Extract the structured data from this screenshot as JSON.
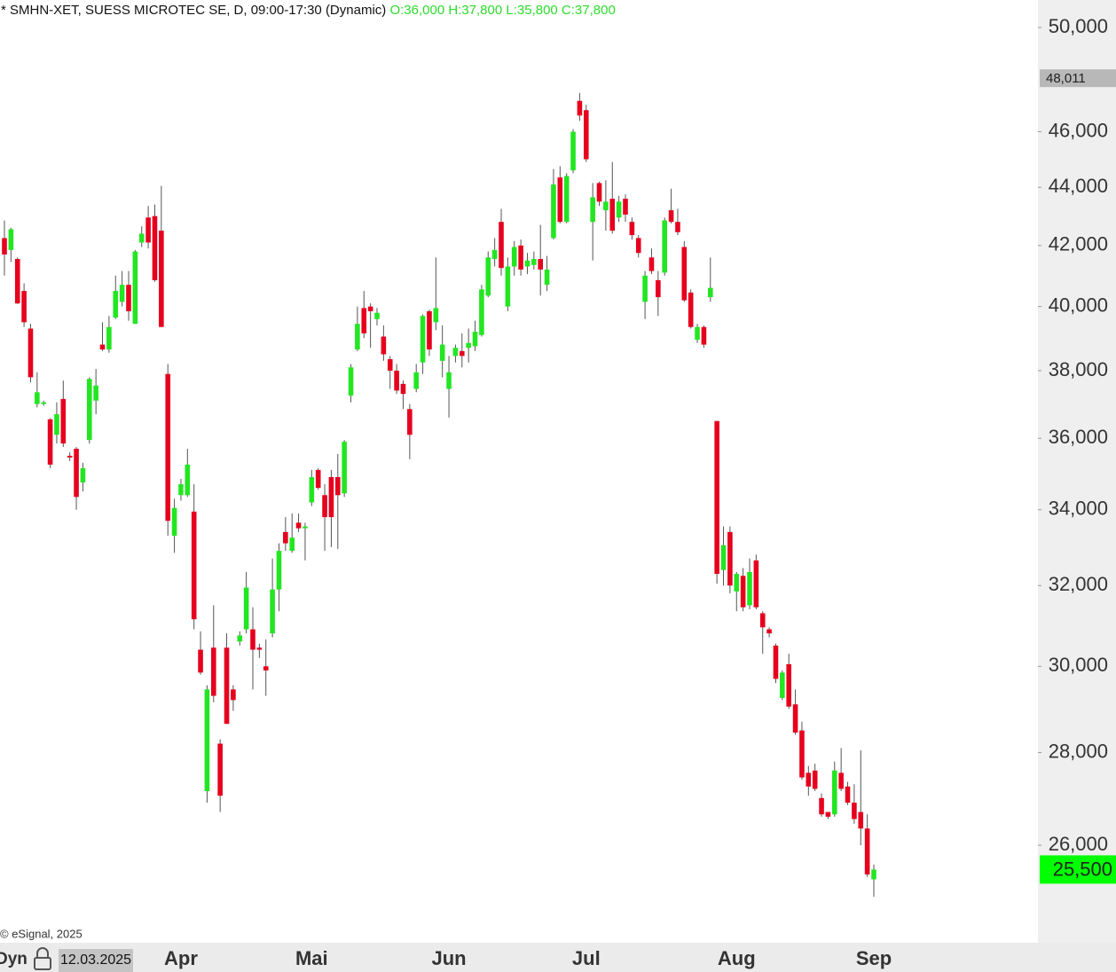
{
  "chart_data": {
    "type": "candlestick",
    "title": "* SMHN-XET, SUESS MICROTEC SE, D, 09:00-17:30 (Dynamic)",
    "ohlc_readout": "O:36,000 H:37,800 L:35,800 C:37,800",
    "copyright": "© eSignal, 2025",
    "mode_label": "Dyn",
    "cursor_date": "12.03.2025",
    "log_scale": true,
    "grid": false,
    "up_color": "#22e622",
    "down_color": "#e6001e",
    "wick_color": "#555555",
    "ylim": [
      24050,
      51110
    ],
    "yticks": [
      {
        "value": 26000,
        "label": "26,000"
      },
      {
        "value": 28000,
        "label": "28,000"
      },
      {
        "value": 30000,
        "label": "30,000"
      },
      {
        "value": 32000,
        "label": "32,000"
      },
      {
        "value": 34000,
        "label": "34,000"
      },
      {
        "value": 36000,
        "label": "36,000"
      },
      {
        "value": 38000,
        "label": "38,000"
      },
      {
        "value": 40000,
        "label": "40,000"
      },
      {
        "value": 42000,
        "label": "42,000"
      },
      {
        "value": 44000,
        "label": "44,000"
      },
      {
        "value": 46000,
        "label": "46,000"
      },
      {
        "value": 50000,
        "label": "50,000"
      }
    ],
    "price_markers": [
      {
        "value": 48011,
        "label": "48,011",
        "color": "#b8b8b8"
      },
      {
        "value": 25500,
        "label": "25,500",
        "color": "#00ff00"
      }
    ],
    "categories": [
      null,
      null,
      null,
      null,
      null,
      null,
      null,
      null,
      null,
      null,
      null,
      null,
      null,
      null,
      null,
      null,
      null,
      null,
      null,
      null,
      null,
      null,
      null,
      null,
      null,
      null,
      null,
      "Apr",
      null,
      null,
      null,
      null,
      null,
      null,
      null,
      null,
      null,
      null,
      null,
      null,
      null,
      null,
      null,
      null,
      null,
      null,
      null,
      "Mai",
      null,
      null,
      null,
      null,
      null,
      null,
      null,
      null,
      null,
      null,
      null,
      null,
      null,
      null,
      null,
      null,
      null,
      null,
      null,
      null,
      "Jun",
      null,
      null,
      null,
      null,
      null,
      null,
      null,
      null,
      null,
      null,
      null,
      null,
      null,
      null,
      null,
      null,
      null,
      null,
      null,
      null,
      "Jul",
      null,
      null,
      null,
      null,
      null,
      null,
      null,
      null,
      null,
      null,
      null,
      null,
      null,
      null,
      null,
      null,
      null,
      null,
      null,
      null,
      null,
      null,
      "Aug",
      null,
      null,
      null,
      null,
      null,
      null,
      null,
      null,
      null,
      null,
      null,
      null,
      null,
      null,
      null,
      null,
      null,
      null,
      null,
      null,
      "Sep"
    ],
    "open": [
      42250,
      41850,
      41550,
      40500,
      39300,
      37000,
      37000,
      36550,
      36100,
      37150,
      35500,
      35700,
      34750,
      35950,
      37100,
      38800,
      38650,
      39650,
      40150,
      40700,
      39450,
      42100,
      42950,
      43000,
      42500,
      37900,
      33300,
      34400,
      34400,
      33950,
      30400,
      27150,
      30450,
      28200,
      30450,
      29450,
      30600,
      30900,
      30900,
      30450,
      30000,
      30800,
      31900,
      33400,
      32900,
      33650,
      33500,
      34200,
      35100,
      34400,
      34900,
      34900,
      34450,
      37250,
      38650,
      39950,
      40000,
      39600,
      39050,
      38350,
      38000,
      37600,
      36850,
      37450,
      38250,
      39850,
      39500,
      38300,
      37450,
      38450,
      38600,
      38700,
      38750,
      39100,
      40350,
      41550,
      42800,
      40000,
      41300,
      42000,
      41300,
      41350,
      41550,
      40700,
      42250,
      44350,
      42800,
      44600,
      47150,
      46800,
      42800,
      44150,
      43200,
      43600,
      42950,
      43600,
      42800,
      42250,
      40150,
      41600,
      40850,
      41100,
      43200,
      42800,
      41950,
      40450,
      38950,
      39350,
      40300,
      36500,
      32400,
      33400,
      31850,
      32250,
      31500,
      32650,
      31300,
      30900,
      30500,
      29250,
      30050,
      29100,
      28500,
      27550,
      27600,
      27000,
      26700,
      26650,
      27550,
      27250,
      26900,
      26700,
      26350,
      25300
    ],
    "high": [
      42850,
      42600,
      41600,
      40750,
      39450,
      37950,
      37100,
      36580,
      37050,
      37700,
      35600,
      35750,
      35300,
      37800,
      38050,
      39500,
      39700,
      41000,
      41150,
      41150,
      41850,
      42650,
      43350,
      43400,
      44050,
      38200,
      34300,
      34850,
      35700,
      34700,
      30850,
      29550,
      31500,
      28300,
      30800,
      29550,
      30850,
      32350,
      31450,
      30550,
      30650,
      32700,
      33100,
      33800,
      33900,
      33900,
      33650,
      35100,
      35150,
      34700,
      35100,
      35550,
      35950,
      38200,
      40000,
      40500,
      40100,
      39950,
      39400,
      38450,
      38200,
      37700,
      37000,
      38200,
      39750,
      39900,
      41600,
      39400,
      38450,
      38800,
      39150,
      39300,
      39550,
      40700,
      41800,
      42250,
      43250,
      41600,
      42150,
      42200,
      41750,
      41800,
      42700,
      41650,
      44650,
      44750,
      44500,
      46100,
      47450,
      47000,
      44150,
      44200,
      44250,
      44900,
      43700,
      43750,
      42950,
      42350,
      41150,
      41900,
      41150,
      42950,
      43950,
      43250,
      42150,
      40550,
      39450,
      39400,
      41600,
      36500,
      33550,
      33550,
      32350,
      32450,
      32700,
      32800,
      31350,
      30950,
      30550,
      29900,
      30300,
      29450,
      28700,
      27700,
      27750,
      27100,
      26700,
      27800,
      28100,
      27350,
      27300,
      28050,
      26650,
      25600
    ],
    "low": [
      41000,
      41450,
      40080,
      39350,
      37650,
      36900,
      36950,
      35150,
      35850,
      35750,
      35350,
      34000,
      34500,
      35850,
      36700,
      38600,
      38550,
      39600,
      40000,
      39550,
      39450,
      41950,
      41900,
      40800,
      39350,
      33300,
      32850,
      34250,
      34350,
      30900,
      29800,
      26900,
      29150,
      26700,
      28650,
      28950,
      30500,
      30800,
      29450,
      30200,
      29300,
      30700,
      31350,
      32900,
      32850,
      33400,
      32650,
      34100,
      34550,
      32900,
      33000,
      32950,
      34350,
      37050,
      38600,
      39000,
      38700,
      39400,
      38300,
      37450,
      37300,
      36850,
      35400,
      37350,
      37900,
      38450,
      39250,
      37800,
      36600,
      38250,
      38100,
      38250,
      38600,
      39050,
      40300,
      41300,
      41000,
      39850,
      41000,
      41000,
      41050,
      41200,
      40350,
      40500,
      42200,
      42750,
      42750,
      44500,
      46400,
      44900,
      41500,
      43350,
      42500,
      42400,
      42800,
      42800,
      42200,
      41600,
      39600,
      41050,
      39700,
      41000,
      42750,
      42350,
      40150,
      39300,
      38850,
      38700,
      40150,
      32050,
      32000,
      31800,
      31350,
      31350,
      31400,
      31400,
      30300,
      30700,
      29600,
      29200,
      29000,
      28400,
      27400,
      27050,
      27150,
      26600,
      26550,
      26600,
      27150,
      26850,
      26450,
      26000,
      25350,
      24950
    ],
    "close": [
      41700,
      42550,
      40100,
      39500,
      37800,
      37350,
      37050,
      35250,
      36700,
      35850,
      35450,
      34350,
      35150,
      37750,
      37550,
      38650,
      39350,
      40500,
      40700,
      39850,
      41800,
      42400,
      42100,
      40850,
      39350,
      33700,
      34050,
      34700,
      35250,
      31150,
      29850,
      29450,
      29300,
      27050,
      28650,
      29200,
      30750,
      31950,
      30400,
      30400,
      29900,
      31900,
      32900,
      33100,
      33250,
      33500,
      33550,
      34900,
      34600,
      33800,
      33800,
      34400,
      35900,
      38100,
      39450,
      39150,
      39850,
      39800,
      38500,
      38000,
      37400,
      37300,
      36100,
      37950,
      39700,
      38650,
      39950,
      38800,
      37950,
      38700,
      38450,
      38850,
      39200,
      40550,
      41600,
      41850,
      41250,
      41300,
      41950,
      41200,
      41500,
      41550,
      41200,
      41200,
      44100,
      42800,
      44400,
      46000,
      46600,
      45000,
      43650,
      43500,
      43500,
      42500,
      43500,
      43050,
      42350,
      41750,
      41000,
      41150,
      40300,
      42850,
      42800,
      42450,
      40200,
      39350,
      39350,
      38800,
      40600,
      32300,
      33050,
      32000,
      32300,
      31450,
      32350,
      31450,
      30950,
      30800,
      29700,
      29850,
      29050,
      28450,
      27450,
      27250,
      27200,
      26650,
      26600,
      27600,
      27200,
      26900,
      26550,
      26350,
      25400,
      25500
    ]
  }
}
